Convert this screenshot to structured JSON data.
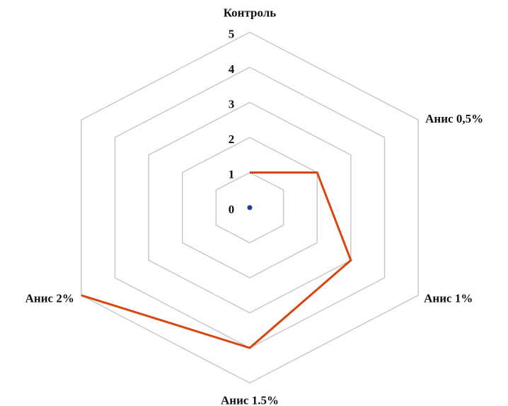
{
  "chart_data": {
    "type": "radar",
    "categories": [
      "Контроль",
      "Анис 0,5%",
      "Анис 1%",
      "Анис 1.5%",
      "Анис 2%",
      null
    ],
    "values": [
      1,
      2,
      3,
      4,
      5,
      null
    ],
    "color": "#d9440f",
    "ylim": [
      0,
      5
    ],
    "yticks": [
      0,
      1,
      2,
      3,
      4,
      5
    ],
    "grid": true
  }
}
